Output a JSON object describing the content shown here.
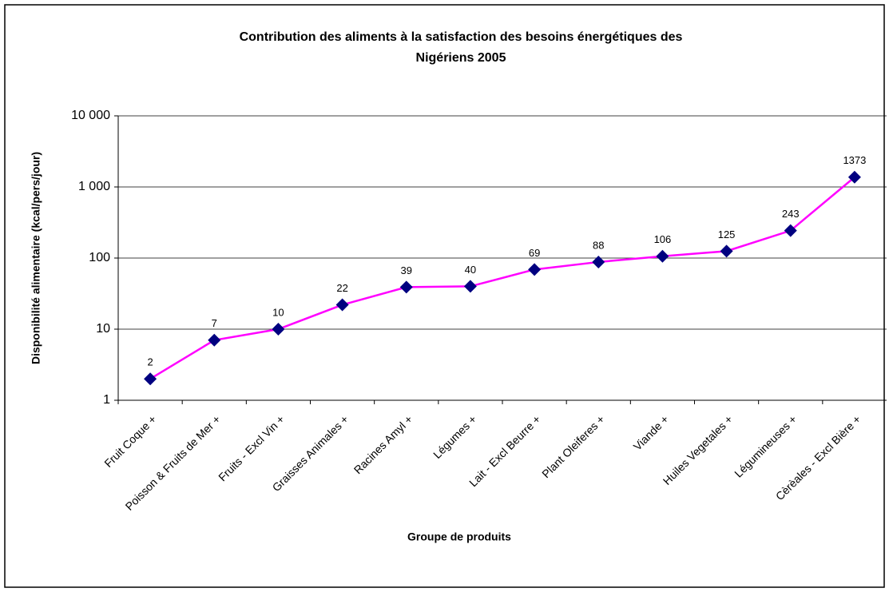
{
  "chart_data": {
    "type": "line",
    "title": [
      "Contribution des aliments à la satisfaction des besoins énergétiques des",
      "Nigériens 2005"
    ],
    "x_label": "Groupe de produits",
    "y_label": "Disponibilité alimentaire (kcal/pers/jour)",
    "categories": [
      "Fruit Coque +",
      "Poisson & Fruits de Mer +",
      "Fruits - Excl Vin +",
      "Graisses Animales +",
      "Racines Amyl +",
      "Légumes +",
      "Lait - Excl Beurre +",
      "Plant Oleiferes +",
      "Viande +",
      "Huiles Vegetales +",
      "Légumineuses +",
      "Cèrèales - Excl Bière +"
    ],
    "series": [
      {
        "name": "Disponibilité alimentaire",
        "color": "#ff00ff",
        "marker_color": "#000080",
        "values": [
          2,
          7,
          10,
          22,
          39,
          40,
          69,
          88,
          106,
          125,
          243,
          1373
        ]
      }
    ],
    "ylim": [
      1,
      10000
    ],
    "log_y": true,
    "grid": true,
    "yticks": [
      1,
      10,
      100,
      {
        "value": 1000,
        "label": "1 000"
      },
      {
        "value": 10000,
        "label": "10 000"
      }
    ]
  }
}
